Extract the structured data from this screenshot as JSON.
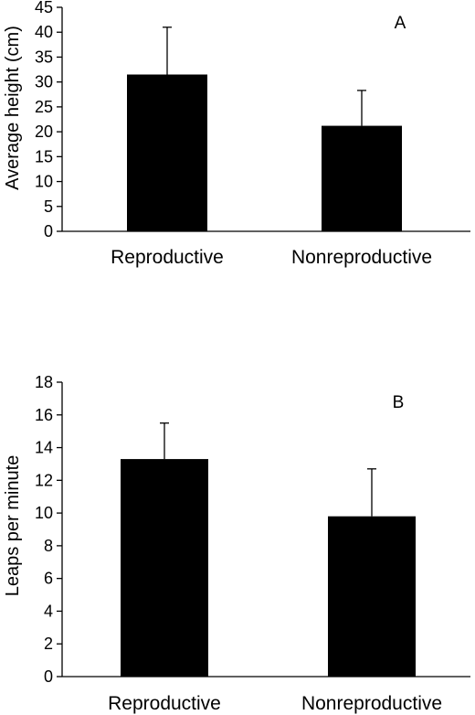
{
  "chart_data": [
    {
      "type": "bar",
      "panel_letter": "A",
      "categories": [
        "Reproductive",
        "Nonreproductive"
      ],
      "values": [
        31.5,
        21.2
      ],
      "error_bars": [
        9.5,
        7.1
      ],
      "ylabel": "Average height (cm)",
      "xlabel": "",
      "ylim": [
        0,
        45
      ],
      "yticks": [
        "0",
        "5",
        "10",
        "15",
        "20",
        "25",
        "30",
        "35",
        "40",
        "45"
      ],
      "grid": false,
      "bar_color": "#000000"
    },
    {
      "type": "bar",
      "panel_letter": "B",
      "categories": [
        "Reproductive",
        "Nonreproductive"
      ],
      "values": [
        13.3,
        9.8
      ],
      "error_bars": [
        2.2,
        2.9
      ],
      "ylabel": "Leaps per minute",
      "xlabel": "",
      "ylim": [
        0,
        18
      ],
      "yticks": [
        "0",
        "2",
        "4",
        "6",
        "8",
        "10",
        "12",
        "14",
        "16",
        "18"
      ],
      "grid": false,
      "bar_color": "#000000"
    }
  ]
}
